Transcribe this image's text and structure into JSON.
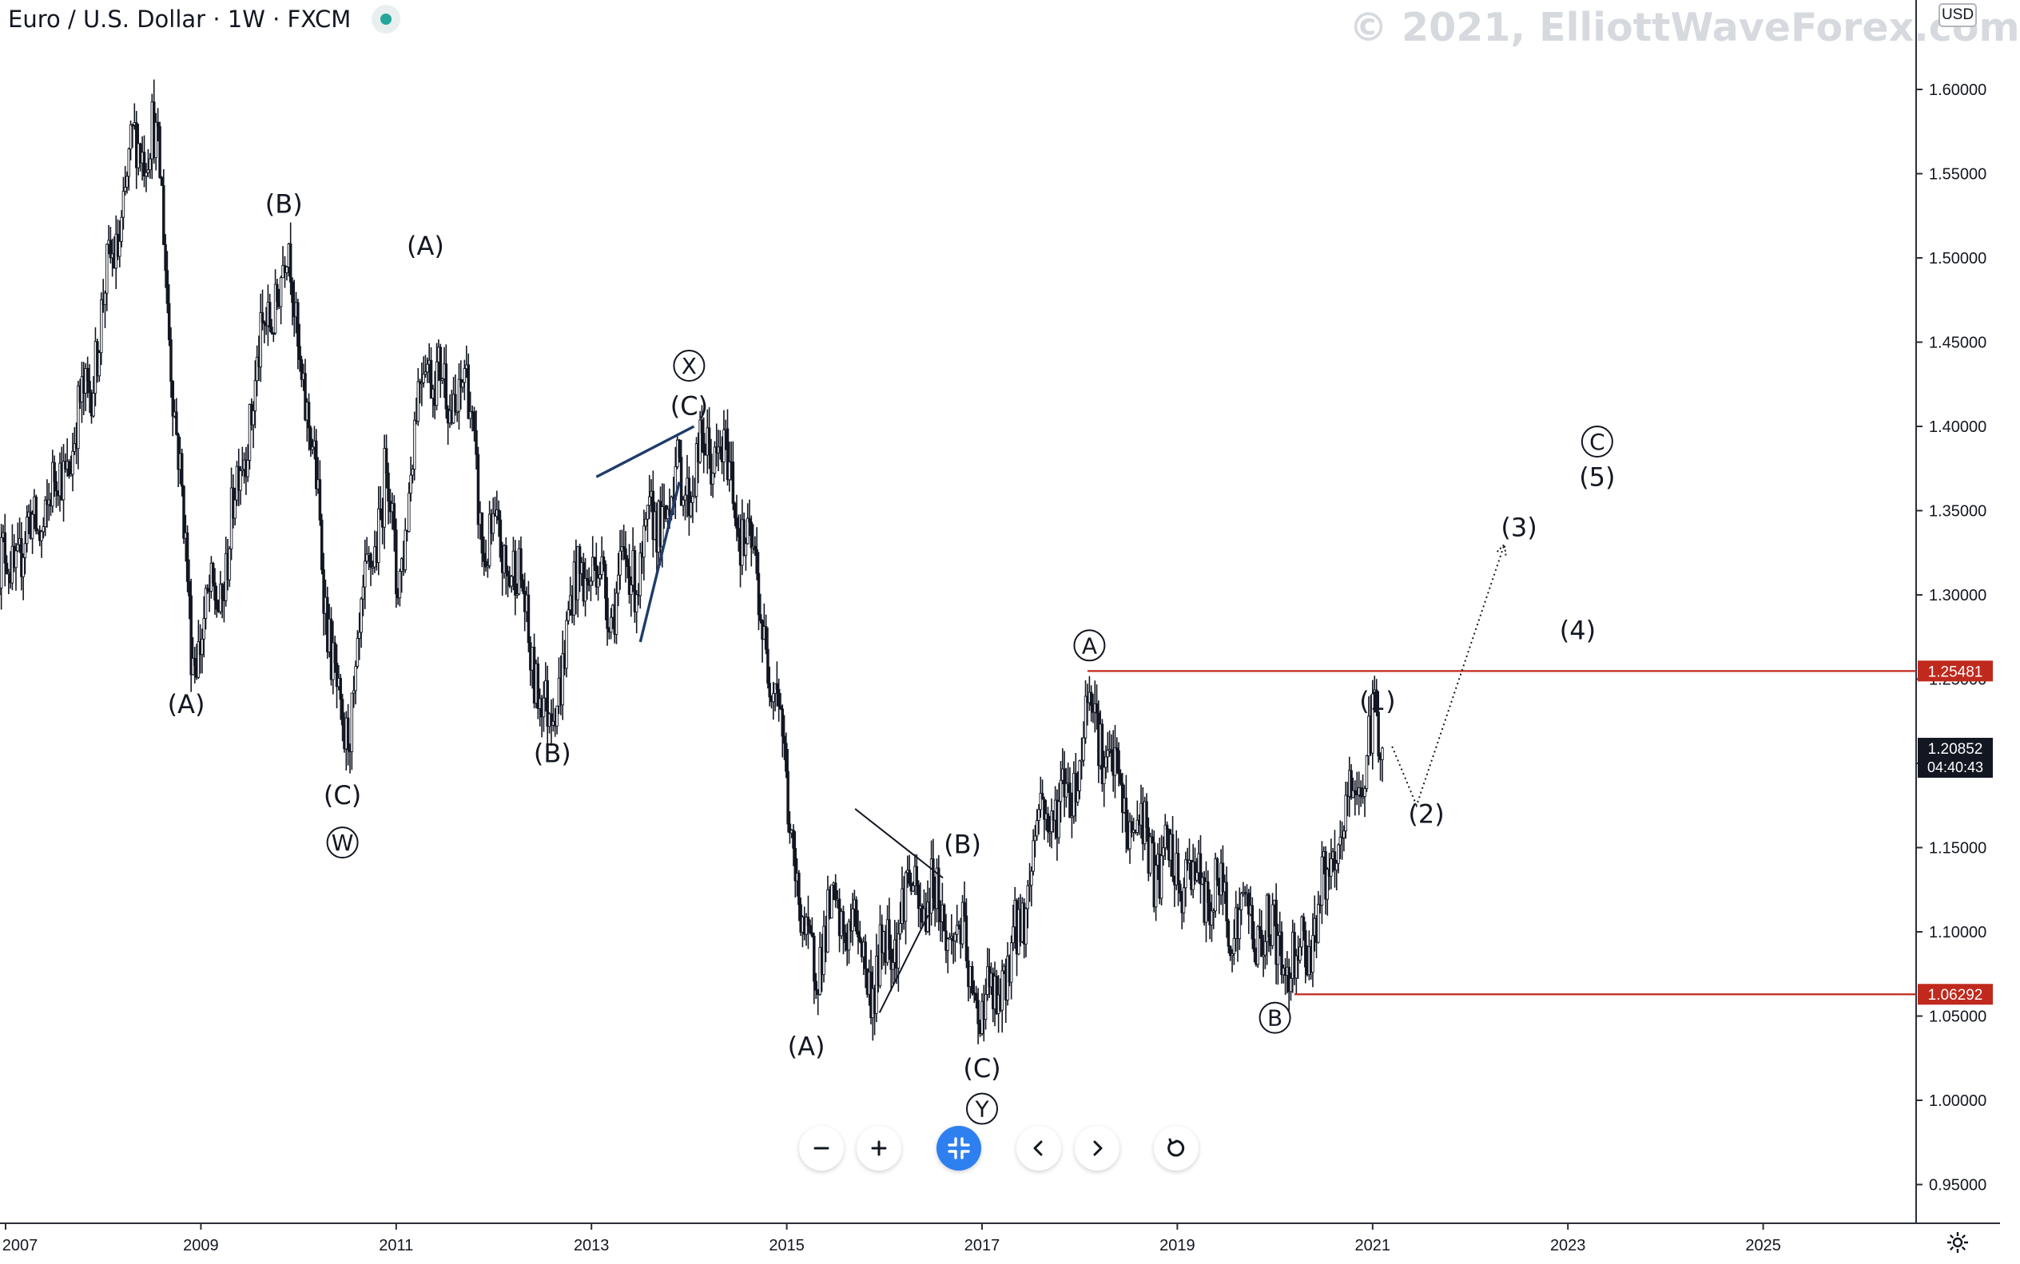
{
  "header": {
    "symbol_title": "Euro / U.S. Dollar · 1W · FXCM",
    "status_dot_color": "#26a69a"
  },
  "watermark": "© 2021, ElliottWaveForex.com",
  "currency_badge": "USD",
  "colors": {
    "candle": "#131722",
    "level_line": "#c0291d",
    "trendline_dark": "#1f3c6b",
    "toolbar_accent": "#2e7ff0"
  },
  "toolbar": {
    "zoom_out_icon": "minus-icon",
    "zoom_in_icon": "plus-icon",
    "reset_scale_icon": "compress-icon",
    "scroll_left_icon": "chevron-left-icon",
    "scroll_right_icon": "chevron-right-icon",
    "reset_icon": "rotate-icon"
  },
  "chart_data": {
    "type": "candlestick",
    "timeframe": "1W",
    "source": "FXCM",
    "x_tick_labels": [
      "2007",
      "2009",
      "2011",
      "2013",
      "2015",
      "2017",
      "2019",
      "2021",
      "2023",
      "2025"
    ],
    "y_tick_labels": [
      "0.95000",
      "1.00000",
      "1.05000",
      "1.10000",
      "1.15000",
      "1.20000",
      "1.25000",
      "1.30000",
      "1.35000",
      "1.40000",
      "1.45000",
      "1.50000",
      "1.55000",
      "1.60000"
    ],
    "ylim": [
      0.92,
      1.65
    ],
    "price_path": [
      [
        2006.9,
        1.31
      ],
      [
        2007.2,
        1.33
      ],
      [
        2007.5,
        1.36
      ],
      [
        2007.8,
        1.41
      ],
      [
        2008.0,
        1.47
      ],
      [
        2008.3,
        1.56
      ],
      [
        2008.5,
        1.58
      ],
      [
        2008.6,
        1.53
      ],
      [
        2008.9,
        1.27
      ],
      [
        2009.2,
        1.3
      ],
      [
        2009.5,
        1.41
      ],
      [
        2009.8,
        1.49
      ],
      [
        2009.9,
        1.5
      ],
      [
        2010.2,
        1.35
      ],
      [
        2010.45,
        1.2
      ],
      [
        2010.7,
        1.3
      ],
      [
        2010.9,
        1.38
      ],
      [
        2011.0,
        1.3
      ],
      [
        2011.3,
        1.45
      ],
      [
        2011.55,
        1.41
      ],
      [
        2011.7,
        1.43
      ],
      [
        2011.9,
        1.33
      ],
      [
        2012.2,
        1.32
      ],
      [
        2012.55,
        1.22
      ],
      [
        2012.9,
        1.32
      ],
      [
        2013.2,
        1.3
      ],
      [
        2013.5,
        1.32
      ],
      [
        2013.8,
        1.36
      ],
      [
        2014.0,
        1.37
      ],
      [
        2014.3,
        1.39
      ],
      [
        2014.6,
        1.33
      ],
      [
        2014.9,
        1.24
      ],
      [
        2015.2,
        1.08
      ],
      [
        2015.4,
        1.1
      ],
      [
        2015.6,
        1.11
      ],
      [
        2015.9,
        1.07
      ],
      [
        2016.2,
        1.12
      ],
      [
        2016.5,
        1.12
      ],
      [
        2016.8,
        1.09
      ],
      [
        2017.0,
        1.05
      ],
      [
        2017.3,
        1.08
      ],
      [
        2017.6,
        1.17
      ],
      [
        2017.9,
        1.18
      ],
      [
        2018.1,
        1.24
      ],
      [
        2018.4,
        1.18
      ],
      [
        2018.8,
        1.14
      ],
      [
        2019.2,
        1.13
      ],
      [
        2019.6,
        1.11
      ],
      [
        2019.9,
        1.1
      ],
      [
        2020.2,
        1.08
      ],
      [
        2020.5,
        1.12
      ],
      [
        2020.8,
        1.18
      ],
      [
        2021.0,
        1.22
      ],
      [
        2021.1,
        1.2085
      ]
    ],
    "horizontal_levels": [
      {
        "price": 1.25481,
        "label": "1.25481",
        "from_x": 2018.08
      },
      {
        "price": 1.06292,
        "label": 1.06292,
        "from_x": 2020.2
      }
    ],
    "current_price": {
      "price": 1.20852,
      "label": "1.20852",
      "countdown": "04:40:43"
    },
    "trendlines": [
      {
        "from": [
          2013.05,
          1.37
        ],
        "to": [
          2014.05,
          1.4
        ],
        "style": "dark"
      },
      {
        "from": [
          2013.5,
          1.272
        ],
        "to": [
          2013.9,
          1.367
        ],
        "style": "dark"
      },
      {
        "from": [
          2015.7,
          1.173
        ],
        "to": [
          2016.6,
          1.132
        ],
        "style": "thin"
      },
      {
        "from": [
          2015.95,
          1.052
        ],
        "to": [
          2016.45,
          1.11
        ],
        "style": "thin"
      }
    ],
    "projection_path": [
      [
        2021.2,
        1.21
      ],
      [
        2021.45,
        1.175
      ],
      [
        2022.35,
        1.33
      ]
    ],
    "wave_labels": [
      {
        "text": "(A)",
        "x": 2008.85,
        "y": 1.235,
        "circled": false
      },
      {
        "text": "(B)",
        "x": 2009.85,
        "y": 1.532,
        "circled": false
      },
      {
        "text": "(C)",
        "x": 2010.45,
        "y": 1.181,
        "circled": false
      },
      {
        "text": "W",
        "x": 2010.45,
        "y": 1.153,
        "circled": true
      },
      {
        "text": "(A)",
        "x": 2011.3,
        "y": 1.507,
        "circled": false
      },
      {
        "text": "(B)",
        "x": 2012.6,
        "y": 1.206,
        "circled": false
      },
      {
        "text": "X",
        "x": 2014.0,
        "y": 1.436,
        "circled": true
      },
      {
        "text": "(C)",
        "x": 2014.0,
        "y": 1.412,
        "circled": false
      },
      {
        "text": "(A)",
        "x": 2015.2,
        "y": 1.032,
        "circled": false
      },
      {
        "text": "(B)",
        "x": 2016.8,
        "y": 1.152,
        "circled": false
      },
      {
        "text": "(C)",
        "x": 2017.0,
        "y": 1.019,
        "circled": false
      },
      {
        "text": "Y",
        "x": 2017.0,
        "y": 0.995,
        "circled": true
      },
      {
        "text": "A",
        "x": 2018.1,
        "y": 1.27,
        "circled": true
      },
      {
        "text": "(1)",
        "x": 2021.05,
        "y": 1.237,
        "circled": false
      },
      {
        "text": "(2)",
        "x": 2021.55,
        "y": 1.17,
        "circled": false
      },
      {
        "text": "B",
        "x": 2020.0,
        "y": 1.049,
        "circled": true
      },
      {
        "text": "(3)",
        "x": 2022.5,
        "y": 1.34,
        "circled": false
      },
      {
        "text": "(4)",
        "x": 2023.1,
        "y": 1.279,
        "circled": false
      },
      {
        "text": "C",
        "x": 2023.3,
        "y": 1.391,
        "circled": true
      },
      {
        "text": "(5)",
        "x": 2023.3,
        "y": 1.37,
        "circled": false
      }
    ]
  }
}
